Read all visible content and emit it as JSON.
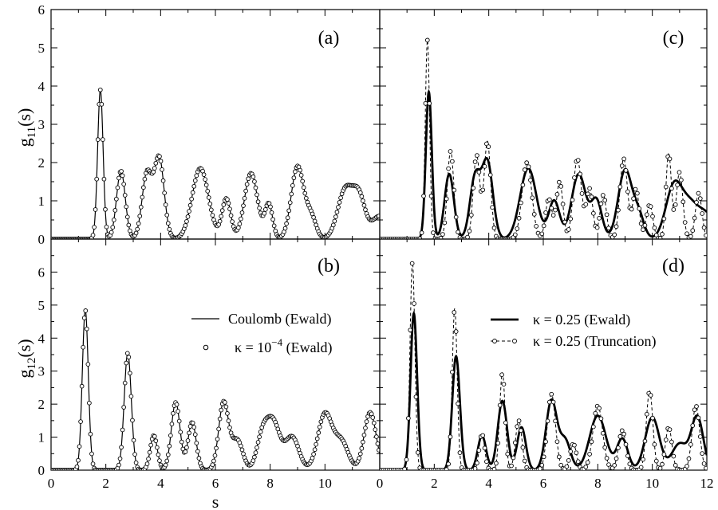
{
  "chart_data": {
    "type": "line",
    "layout": "2x2 panels",
    "x_label": "s",
    "xlim": [
      0,
      12
    ],
    "x_ticks_left": [
      "0",
      "2",
      "4",
      "6",
      "8",
      "10"
    ],
    "x_ticks_right": [
      "0",
      "2",
      "4",
      "6",
      "8",
      "10",
      "12"
    ],
    "y_label_top": {
      "main": "g",
      "sub": "11",
      "tail": "(s)"
    },
    "y_label_bottom": {
      "main": "g",
      "sub": "12",
      "tail": "(s)"
    },
    "ylim_top": [
      0,
      6
    ],
    "ylim_bottom": [
      0,
      7
    ],
    "y_ticks_top": [
      "0",
      "1",
      "2",
      "3",
      "4",
      "5",
      "6"
    ],
    "y_ticks_bottom": [
      "0",
      "1",
      "2",
      "3",
      "4",
      "5",
      "6"
    ],
    "legend_left": {
      "line": "Coulomb (Ewald)",
      "circle_prefix": "κ = 10",
      "circle_exp": "−4",
      "circle_suffix": " (Ewald)"
    },
    "legend_right": {
      "solid": "κ = 0.25 (Ewald)",
      "dashed": "κ = 0.25 (Truncation)"
    },
    "panels": [
      {
        "label": "(a)",
        "quantity": "g11",
        "series": [
          {
            "name": "Coulomb (Ewald)",
            "style": "thin-solid",
            "peaks": [
              [
                1.8,
                3.9,
                0.1
              ],
              [
                2.55,
                1.78,
                0.16
              ],
              [
                3.5,
                1.7,
                0.18
              ],
              [
                3.95,
                2.1,
                0.18
              ],
              [
                5.45,
                1.85,
                0.3
              ],
              [
                6.4,
                1.05,
                0.16
              ],
              [
                7.3,
                1.72,
                0.24
              ],
              [
                7.95,
                0.9,
                0.14
              ],
              [
                9.0,
                1.9,
                0.23
              ],
              [
                9.5,
                0.55,
                0.18
              ],
              [
                10.75,
                1.3,
                0.28
              ],
              [
                11.25,
                1.0,
                0.22
              ],
              [
                12.0,
                0.6,
                0.3
              ]
            ]
          },
          {
            "name": "κ = 10^-4 (Ewald)",
            "style": "circles",
            "peaks": [
              [
                1.8,
                3.9,
                0.1
              ],
              [
                2.55,
                1.78,
                0.16
              ],
              [
                3.5,
                1.7,
                0.18
              ],
              [
                3.95,
                2.1,
                0.18
              ],
              [
                5.45,
                1.85,
                0.3
              ],
              [
                6.4,
                1.05,
                0.16
              ],
              [
                7.3,
                1.72,
                0.24
              ],
              [
                7.95,
                0.9,
                0.14
              ],
              [
                9.0,
                1.9,
                0.23
              ],
              [
                9.5,
                0.55,
                0.18
              ],
              [
                10.75,
                1.3,
                0.28
              ],
              [
                11.25,
                1.0,
                0.22
              ],
              [
                12.0,
                0.6,
                0.3
              ]
            ]
          }
        ]
      },
      {
        "label": "(b)",
        "quantity": "g12",
        "series": [
          {
            "name": "Coulomb (Ewald)",
            "style": "thin-solid",
            "peaks": [
              [
                1.25,
                4.85,
                0.11
              ],
              [
                2.8,
                3.55,
                0.13
              ],
              [
                3.75,
                1.05,
                0.13
              ],
              [
                4.55,
                2.05,
                0.16
              ],
              [
                5.15,
                1.45,
                0.15
              ],
              [
                6.3,
                2.05,
                0.18
              ],
              [
                6.8,
                0.9,
                0.2
              ],
              [
                7.7,
                0.9,
                0.2
              ],
              [
                8.1,
                1.45,
                0.25
              ],
              [
                8.8,
                1.0,
                0.25
              ],
              [
                10.0,
                1.7,
                0.26
              ],
              [
                10.6,
                0.85,
                0.25
              ],
              [
                11.65,
                1.75,
                0.22
              ]
            ]
          },
          {
            "name": "κ = 10^-4 (Ewald)",
            "style": "circles",
            "peaks": [
              [
                1.25,
                4.85,
                0.11
              ],
              [
                2.8,
                3.55,
                0.13
              ],
              [
                3.75,
                1.05,
                0.13
              ],
              [
                4.55,
                2.05,
                0.16
              ],
              [
                5.15,
                1.45,
                0.15
              ],
              [
                6.3,
                2.05,
                0.18
              ],
              [
                6.8,
                0.9,
                0.2
              ],
              [
                7.7,
                0.9,
                0.2
              ],
              [
                8.1,
                1.45,
                0.25
              ],
              [
                8.8,
                1.0,
                0.25
              ],
              [
                10.0,
                1.7,
                0.26
              ],
              [
                10.6,
                0.85,
                0.25
              ],
              [
                11.65,
                1.75,
                0.22
              ]
            ]
          }
        ]
      },
      {
        "label": "(c)",
        "quantity": "g11",
        "series": [
          {
            "name": "κ = 0.25 (Ewald)",
            "style": "thick-solid",
            "peaks": [
              [
                1.8,
                3.85,
                0.11
              ],
              [
                2.55,
                1.7,
                0.17
              ],
              [
                3.5,
                1.6,
                0.19
              ],
              [
                3.95,
                2.0,
                0.2
              ],
              [
                5.45,
                1.85,
                0.3
              ],
              [
                6.4,
                1.0,
                0.2
              ],
              [
                7.3,
                1.7,
                0.26
              ],
              [
                7.95,
                1.0,
                0.2
              ],
              [
                9.0,
                1.8,
                0.25
              ],
              [
                9.5,
                0.6,
                0.2
              ],
              [
                10.8,
                1.4,
                0.3
              ],
              [
                11.4,
                0.8,
                0.3
              ],
              [
                12.0,
                0.6,
                0.3
              ]
            ]
          },
          {
            "name": "κ = 0.25 (Truncation)",
            "style": "dashed-circles",
            "peaks": [
              [
                1.75,
                5.2,
                0.08
              ],
              [
                2.6,
                2.3,
                0.12
              ],
              [
                3.55,
                2.2,
                0.12
              ],
              [
                3.95,
                2.55,
                0.12
              ],
              [
                5.4,
                2.0,
                0.18
              ],
              [
                6.2,
                1.05,
                0.12
              ],
              [
                6.6,
                1.5,
                0.12
              ],
              [
                7.25,
                2.1,
                0.15
              ],
              [
                7.7,
                1.3,
                0.12
              ],
              [
                8.2,
                1.15,
                0.12
              ],
              [
                8.95,
                2.1,
                0.14
              ],
              [
                9.4,
                1.3,
                0.12
              ],
              [
                9.9,
                0.9,
                0.12
              ],
              [
                10.6,
                2.25,
                0.1
              ],
              [
                11.0,
                1.75,
                0.12
              ],
              [
                11.7,
                1.2,
                0.12
              ]
            ]
          }
        ]
      },
      {
        "label": "(d)",
        "quantity": "g12",
        "series": [
          {
            "name": "κ = 0.25 (Ewald)",
            "style": "thick-solid",
            "peaks": [
              [
                1.25,
                4.75,
                0.12
              ],
              [
                2.8,
                3.45,
                0.14
              ],
              [
                3.75,
                1.05,
                0.15
              ],
              [
                4.5,
                2.1,
                0.17
              ],
              [
                5.2,
                1.3,
                0.16
              ],
              [
                6.3,
                2.1,
                0.2
              ],
              [
                6.8,
                0.9,
                0.2
              ],
              [
                8.0,
                1.65,
                0.3
              ],
              [
                8.9,
                0.95,
                0.2
              ],
              [
                10.0,
                1.6,
                0.26
              ],
              [
                11.0,
                0.8,
                0.28
              ],
              [
                11.65,
                1.6,
                0.22
              ]
            ]
          },
          {
            "name": "κ = 0.25 (Truncation)",
            "style": "dashed-circles",
            "peaks": [
              [
                1.2,
                6.3,
                0.09
              ],
              [
                2.75,
                4.9,
                0.09
              ],
              [
                3.75,
                1.1,
                0.1
              ],
              [
                4.5,
                2.95,
                0.1
              ],
              [
                5.1,
                1.5,
                0.12
              ],
              [
                6.3,
                2.3,
                0.15
              ],
              [
                7.1,
                0.8,
                0.12
              ],
              [
                8.0,
                1.95,
                0.18
              ],
              [
                8.9,
                1.2,
                0.14
              ],
              [
                9.9,
                2.4,
                0.12
              ],
              [
                10.6,
                1.3,
                0.12
              ],
              [
                11.6,
                1.95,
                0.14
              ]
            ]
          }
        ]
      }
    ]
  }
}
